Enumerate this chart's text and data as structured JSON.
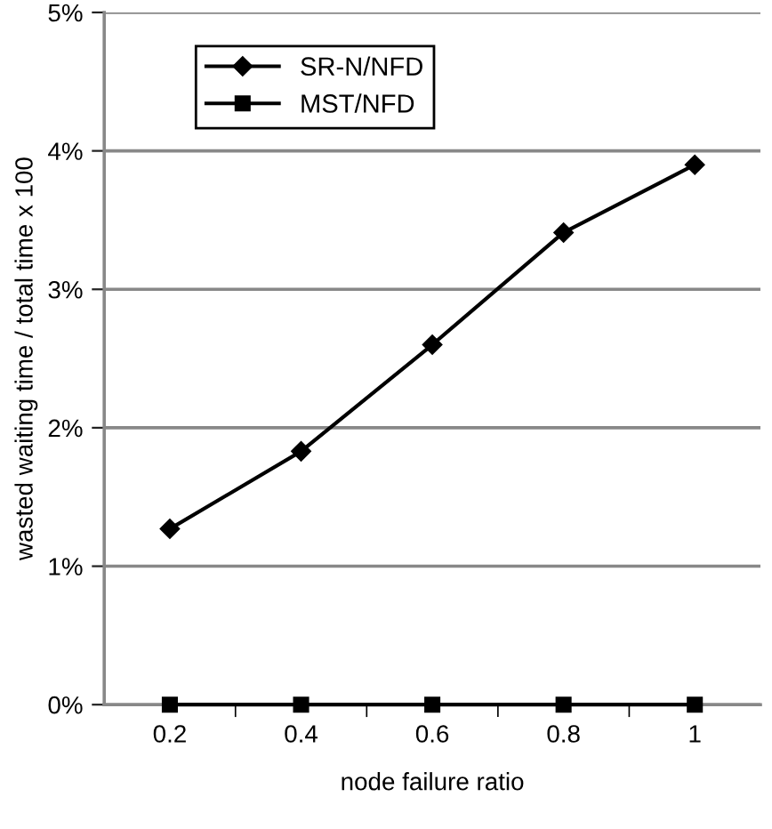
{
  "chart_data": {
    "type": "line",
    "xlabel": "node failure ratio",
    "ylabel": "wasted waiting time / total time x 100",
    "categories": [
      "0.2",
      "0.4",
      "0.6",
      "0.8",
      "1"
    ],
    "series": [
      {
        "name": "SR-N/NFD",
        "color": "#000000",
        "marker": "diamond",
        "values": [
          1.27,
          1.83,
          2.6,
          3.41,
          3.9
        ]
      },
      {
        "name": "MST/NFD",
        "color": "#000000",
        "marker": "square",
        "values": [
          0,
          0,
          0,
          0,
          0
        ]
      }
    ],
    "ylim": [
      0,
      5
    ],
    "yticks": [
      {
        "value": 0,
        "label": "0%"
      },
      {
        "value": 1,
        "label": "1%"
      },
      {
        "value": 2,
        "label": "2%"
      },
      {
        "value": 3,
        "label": "3%"
      },
      {
        "value": 4,
        "label": "4%"
      },
      {
        "value": 5,
        "label": "5%"
      }
    ],
    "grid": "y",
    "legend": "top left",
    "line_style": "solid"
  }
}
